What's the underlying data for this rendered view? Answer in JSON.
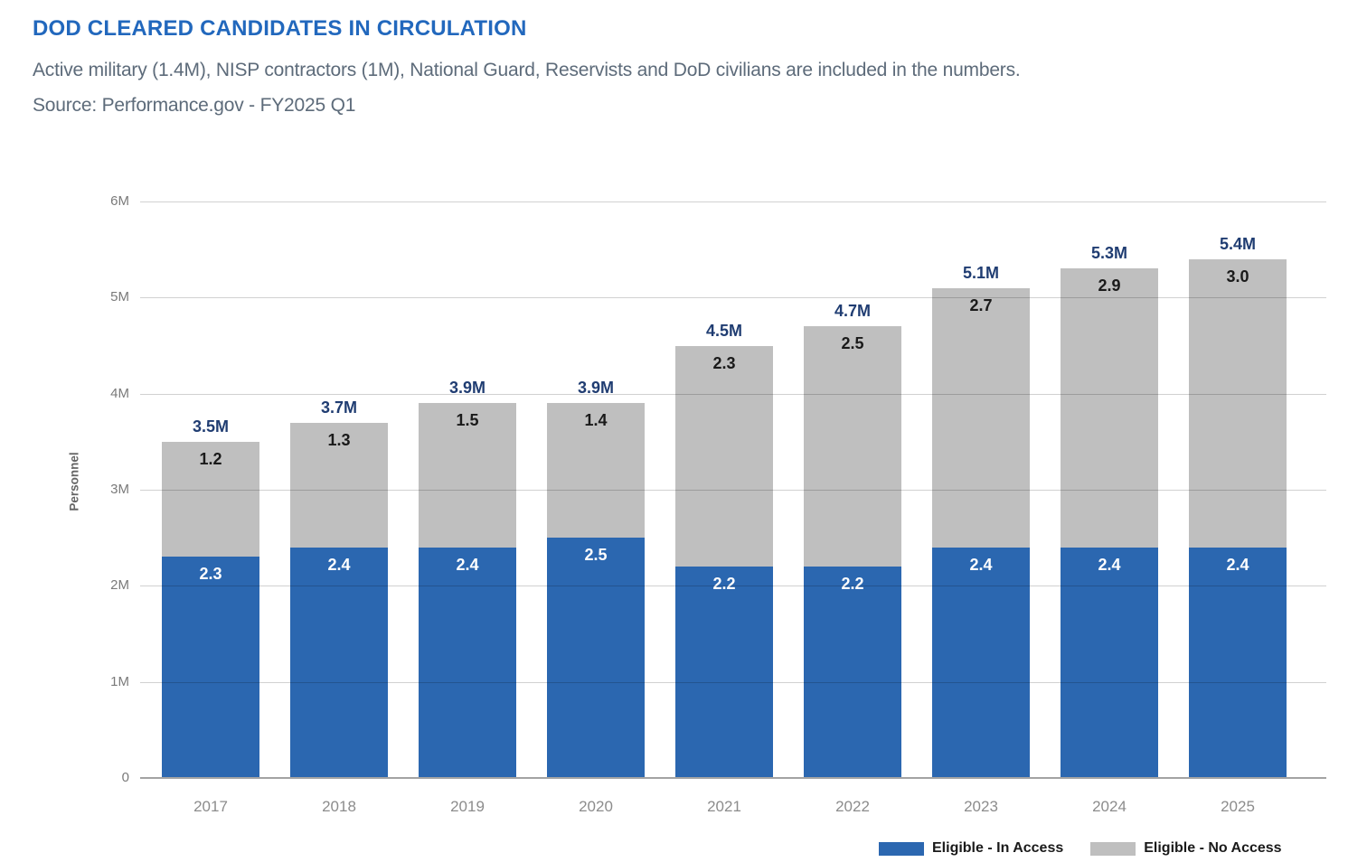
{
  "header": {
    "title": "DOD CLEARED CANDIDATES IN CIRCULATION",
    "subtitle": "Active military (1.4M), NISP contractors (1M), National Guard, Reservists and DoD civilians are included in the numbers.",
    "source": "Source: Performance.gov - FY2025 Q1"
  },
  "chart_data": {
    "type": "bar",
    "stacked": true,
    "title": "DOD CLEARED CANDIDATES IN CIRCULATION",
    "categories": [
      "2017",
      "2018",
      "2019",
      "2020",
      "2021",
      "2022",
      "2023",
      "2024",
      "2025"
    ],
    "series": [
      {
        "name": "Eligible - In Access",
        "color": "#2b67b0",
        "label_color": "#ffffff",
        "values": [
          2.3,
          2.4,
          2.4,
          2.5,
          2.2,
          2.2,
          2.4,
          2.4,
          2.4
        ]
      },
      {
        "name": "Eligible - No Access",
        "color": "#bfbfbf",
        "label_color": "#1a1a1a",
        "values": [
          1.2,
          1.3,
          1.5,
          1.4,
          2.3,
          2.5,
          2.7,
          2.9,
          3.0
        ]
      }
    ],
    "totals": [
      3.5,
      3.7,
      3.9,
      3.9,
      4.5,
      4.7,
      5.1,
      5.3,
      5.4
    ],
    "total_labels": [
      "3.5M",
      "3.7M",
      "3.9M",
      "3.9M",
      "4.5M",
      "4.7M",
      "5.1M",
      "5.3M",
      "5.4M"
    ],
    "total_label_color": "#203d72",
    "xlabel": "",
    "ylabel": "Personnel",
    "yticks": [
      "0",
      "1M",
      "2M",
      "3M",
      "4M",
      "5M",
      "6M"
    ],
    "ylim": [
      0,
      6
    ],
    "grid": true,
    "legend_position": "bottom-right"
  },
  "colors": {
    "title_blue": "#2268bd",
    "subtitle_gray": "#5d6b7a",
    "axis_gray": "#7a7a7a"
  }
}
